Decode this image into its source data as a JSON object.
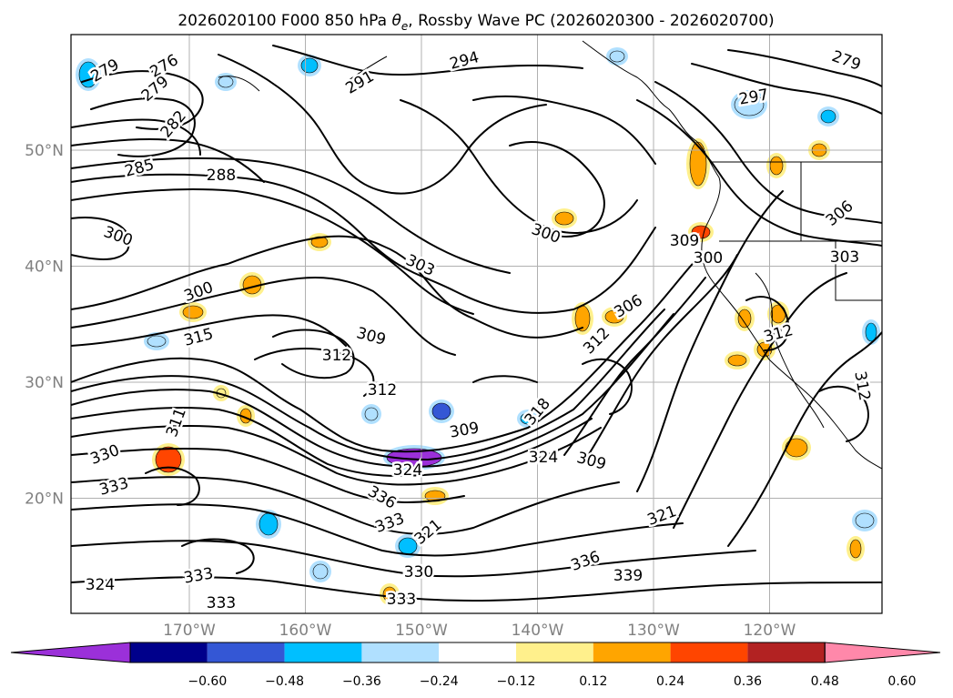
{
  "map": {
    "title_prefix": "2026020100 F000 850 hPa ",
    "title_var": "θ",
    "title_var_sub": "e",
    "title_suffix": ", Rossby Wave PC (2026020300 - 2026020700)",
    "lat_ticks": [
      {
        "lat": 50,
        "label": "50°N"
      },
      {
        "lat": 40,
        "label": "40°N"
      },
      {
        "lat": 30,
        "label": "30°N"
      },
      {
        "lat": 20,
        "label": "20°N"
      }
    ],
    "lon_ticks": [
      {
        "lon": -170,
        "label": "170°W"
      },
      {
        "lon": -160,
        "label": "160°W"
      },
      {
        "lon": -150,
        "label": "150°W"
      },
      {
        "lon": -140,
        "label": "140°W"
      },
      {
        "lon": -130,
        "label": "130°W"
      },
      {
        "lon": -120,
        "label": "120°W"
      }
    ],
    "contour_labels": [
      {
        "text": "279",
        "rot": -30
      },
      {
        "text": "276",
        "rot": -30
      },
      {
        "text": "279",
        "rot": -40
      },
      {
        "text": "282",
        "rot": -50
      },
      {
        "text": "285",
        "rot": -15
      },
      {
        "text": "288",
        "rot": 0
      },
      {
        "text": "291",
        "rot": -30
      },
      {
        "text": "294",
        "rot": -15
      },
      {
        "text": "297",
        "rot": -10
      },
      {
        "text": "279",
        "rot": 20
      },
      {
        "text": "300",
        "rot": 20
      },
      {
        "text": "303",
        "rot": 25
      },
      {
        "text": "300",
        "rot": 20
      },
      {
        "text": "309",
        "rot": 0
      },
      {
        "text": "300",
        "rot": 0
      },
      {
        "text": "306",
        "rot": -30
      },
      {
        "text": "303",
        "rot": 0
      },
      {
        "text": "300",
        "rot": -20
      },
      {
        "text": "315",
        "rot": -15
      },
      {
        "text": "309",
        "rot": 15
      },
      {
        "text": "312",
        "rot": 0
      },
      {
        "text": "306",
        "rot": -40
      },
      {
        "text": "312",
        "rot": -45
      },
      {
        "text": "312",
        "rot": 0
      },
      {
        "text": "312",
        "rot": -15
      },
      {
        "text": "309",
        "rot": -10
      },
      {
        "text": "318",
        "rot": -50
      },
      {
        "text": "324",
        "rot": 0
      },
      {
        "text": "309",
        "rot": 15
      },
      {
        "text": "324",
        "rot": 0
      },
      {
        "text": "330",
        "rot": -20
      },
      {
        "text": "333",
        "rot": -15
      },
      {
        "text": "336",
        "rot": 30
      },
      {
        "text": "333",
        "rot": -20
      },
      {
        "text": "321",
        "rot": -40
      },
      {
        "text": "330",
        "rot": 0
      },
      {
        "text": "336",
        "rot": -20
      },
      {
        "text": "339",
        "rot": 0
      },
      {
        "text": "321",
        "rot": -20
      },
      {
        "text": "333",
        "rot": -10
      },
      {
        "text": "333",
        "rot": 0
      },
      {
        "text": "333",
        "rot": 0
      },
      {
        "text": "324",
        "rot": 0
      },
      {
        "text": "311",
        "rot": -70
      },
      {
        "text": "312",
        "rot": 80
      }
    ],
    "anomaly_blobs": [
      {
        "v": -0.36
      },
      {
        "v": -0.24
      },
      {
        "v": -0.3
      },
      {
        "v": -0.24
      },
      {
        "v": -0.2
      },
      {
        "v": -0.28
      },
      {
        "v": -0.62
      },
      {
        "v": -0.4
      },
      {
        "v": -0.3
      },
      {
        "v": -0.28
      },
      {
        "v": -0.24
      },
      {
        "v": -0.2
      },
      {
        "v": -0.24
      },
      {
        "v": -0.2
      },
      {
        "v": -0.3
      },
      {
        "v": -0.3
      },
      {
        "v": 0.42
      },
      {
        "v": 0.3
      },
      {
        "v": 0.3
      },
      {
        "v": 0.3
      },
      {
        "v": 0.3
      },
      {
        "v": 0.24
      },
      {
        "v": 0.26
      },
      {
        "v": 0.3
      },
      {
        "v": 0.3
      },
      {
        "v": 0.28
      },
      {
        "v": 0.3
      },
      {
        "v": 0.3
      },
      {
        "v": 0.26
      },
      {
        "v": 0.3
      },
      {
        "v": 0.4
      },
      {
        "v": 0.28
      },
      {
        "v": 0.3
      },
      {
        "v": 0.26
      },
      {
        "v": 0.3
      },
      {
        "v": 0.3
      },
      {
        "v": 0.2
      }
    ]
  },
  "colorbar": {
    "colors": [
      "#9b30d9",
      "#00008b",
      "#3457d5",
      "#00bfff",
      "#b0e0ff",
      "#ffffff",
      "#fff08c",
      "#ffa500",
      "#ff4500",
      "#b22222",
      "#ff88aa"
    ],
    "ticks": [
      "−0.60",
      "−0.48",
      "−0.36",
      "−0.24",
      "−0.12",
      "0.12",
      "0.24",
      "0.36",
      "0.48",
      "0.60"
    ]
  }
}
